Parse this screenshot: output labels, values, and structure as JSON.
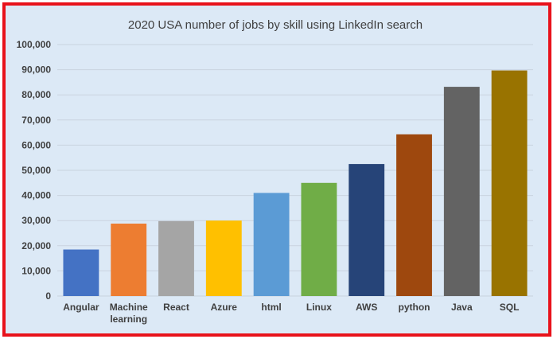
{
  "chart_data": {
    "type": "bar",
    "title": "2020 USA number of jobs by skill using LinkedIn search",
    "categories": [
      [
        "Angular"
      ],
      [
        "Machine",
        "learning"
      ],
      [
        "React"
      ],
      [
        "Azure"
      ],
      [
        "html"
      ],
      [
        "Linux"
      ],
      [
        "AWS"
      ],
      [
        "python"
      ],
      [
        "Java"
      ],
      [
        "SQL"
      ]
    ],
    "values": [
      18500,
      28800,
      29800,
      30000,
      41000,
      45000,
      52500,
      64300,
      83200,
      89700
    ],
    "colors": [
      "#4472c4",
      "#ed7d31",
      "#a5a5a5",
      "#ffc000",
      "#5b9bd5",
      "#70ad47",
      "#264478",
      "#9e480e",
      "#636363",
      "#997300"
    ],
    "ylim": [
      0,
      100000
    ],
    "yticks": [
      "0",
      "10,000",
      "20,000",
      "30,000",
      "40,000",
      "50,000",
      "60,000",
      "70,000",
      "80,000",
      "90,000",
      "100,000"
    ],
    "xlabel": "",
    "ylabel": "",
    "grid": true,
    "legend": "none"
  }
}
